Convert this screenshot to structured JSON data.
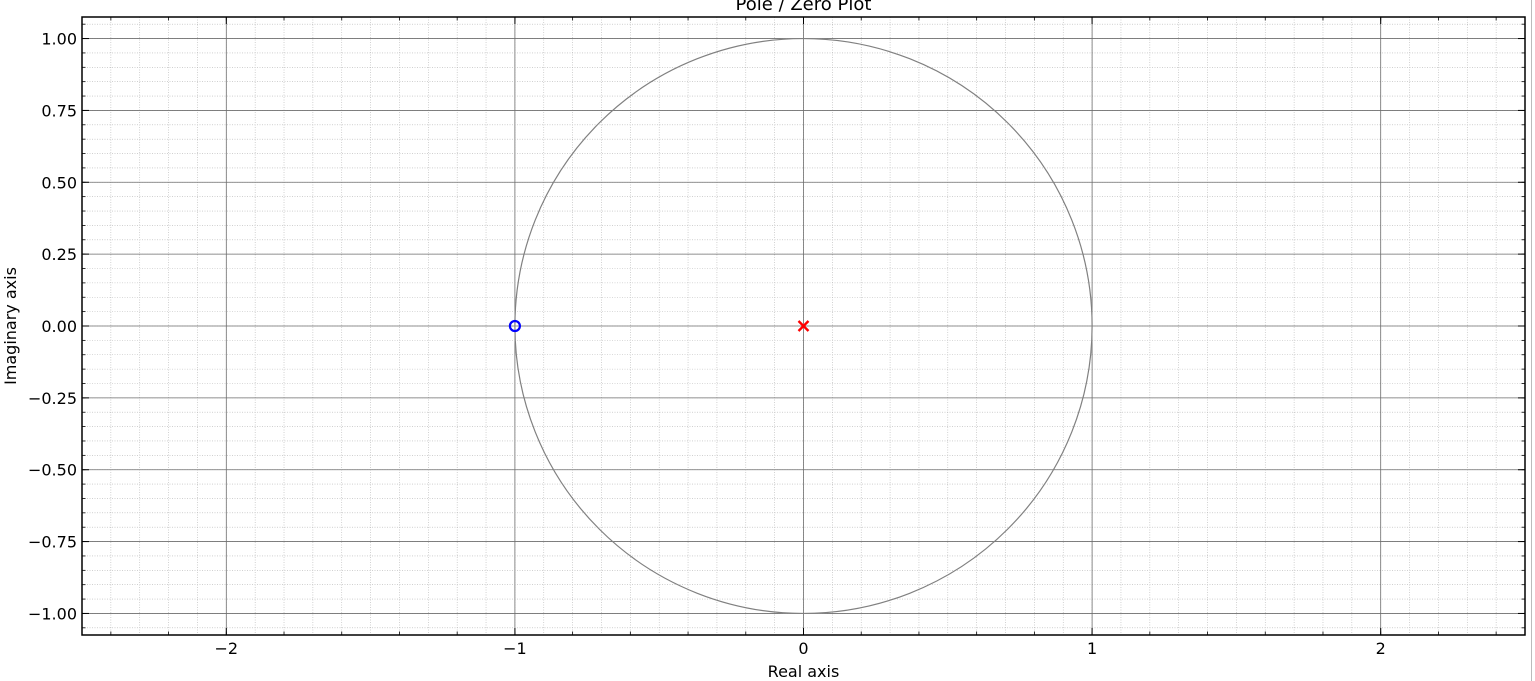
{
  "chart_data": {
    "type": "scatter",
    "title": "Pole / Zero Plot",
    "xlabel": "Real axis",
    "ylabel": "Imaginary axis",
    "xlim": [
      -2.5,
      2.5
    ],
    "ylim": [
      -1.075,
      1.075
    ],
    "x_major_ticks": [
      -2,
      -1,
      0,
      1,
      2
    ],
    "x_tick_labels": [
      "−2",
      "−1",
      "0",
      "1",
      "2"
    ],
    "x_minor_step": 0.1,
    "y_major_ticks": [
      1.0,
      0.75,
      0.5,
      0.25,
      0.0,
      -0.25,
      -0.5,
      -0.75,
      -1.0
    ],
    "y_tick_labels": [
      "1.00",
      "0.75",
      "0.50",
      "0.25",
      "0.00",
      "−0.25",
      "−0.50",
      "−0.75",
      "−1.00"
    ],
    "y_minor_step": 0.05,
    "grid": true,
    "unit_circle": {
      "center": [
        0,
        0
      ],
      "radius": 1,
      "color": "#808080"
    },
    "series": [
      {
        "marker": "o",
        "color": "#0000ff",
        "x": [
          -1
        ],
        "y": [
          0
        ]
      },
      {
        "marker": "x",
        "color": "#ff0000",
        "x": [
          0
        ],
        "y": [
          0
        ]
      }
    ]
  }
}
